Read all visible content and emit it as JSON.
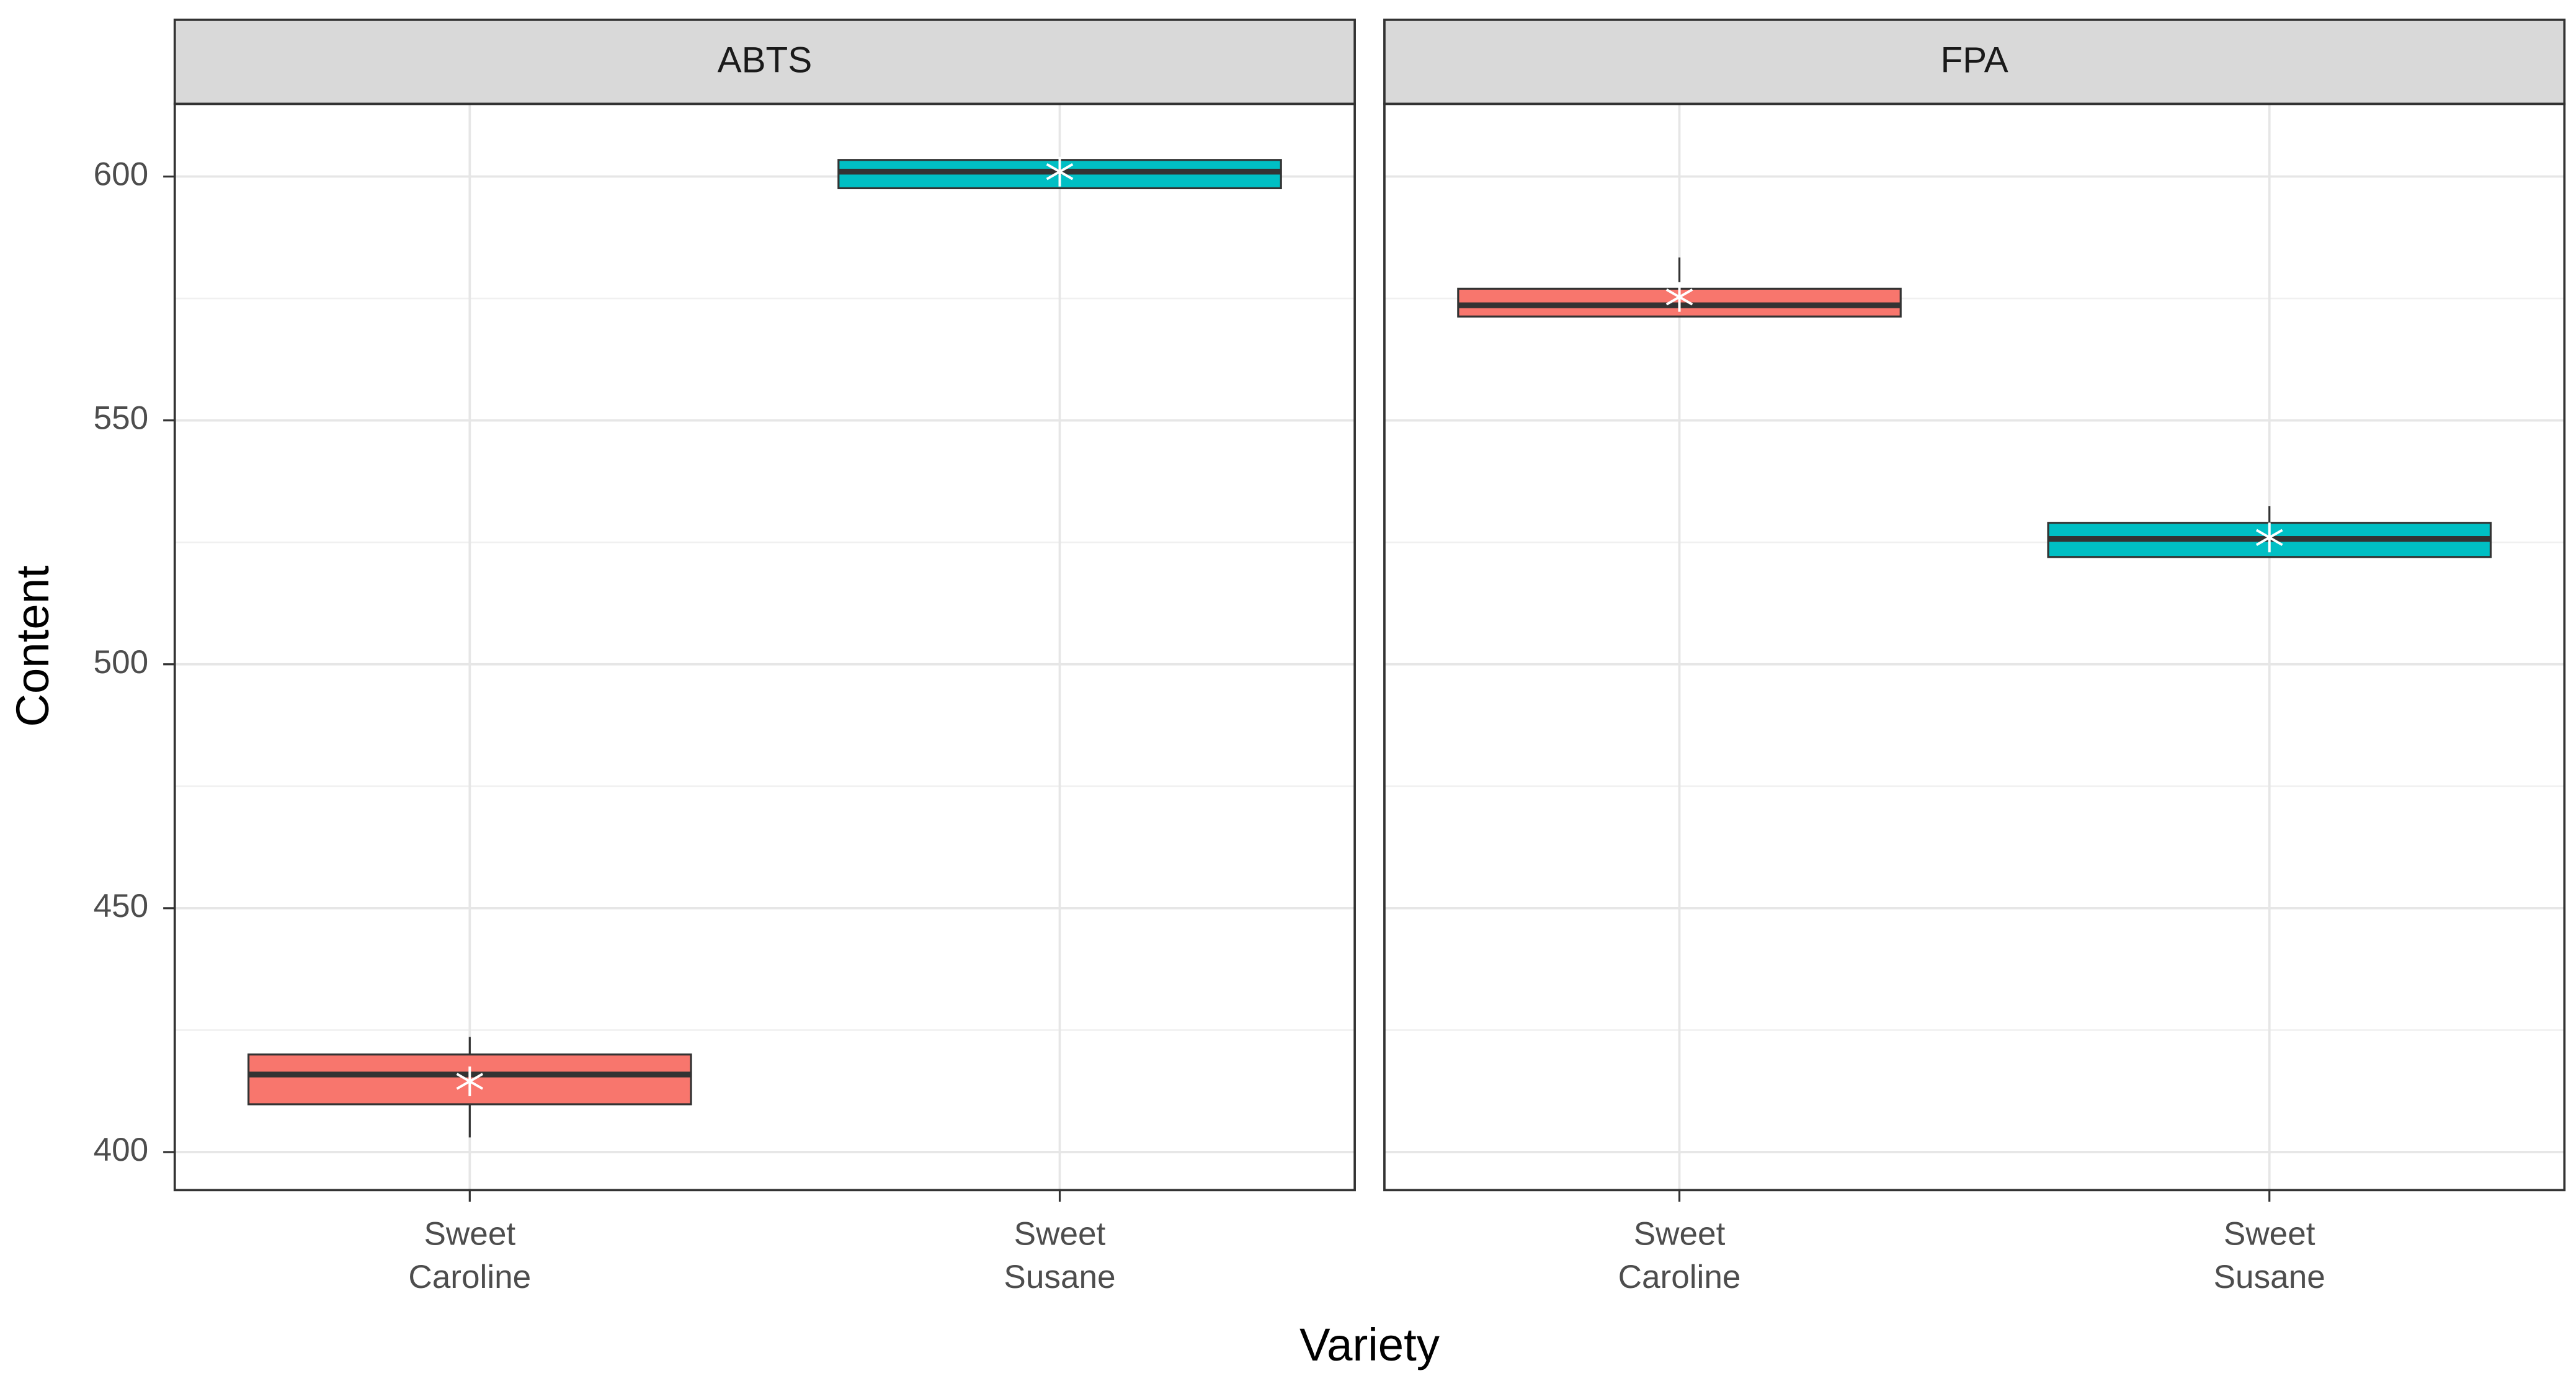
{
  "chart_data": {
    "type": "box",
    "xlabel": "Variety",
    "ylabel": "Content",
    "ylim": [
      392.2,
      614.9
    ],
    "yticks": [
      400,
      450,
      500,
      550,
      600
    ],
    "minor_yticks": [
      425,
      475,
      525,
      575
    ],
    "grid": true,
    "colors": [
      "#f8766d",
      "#00bfc4"
    ],
    "panels": [
      {
        "title": "ABTS",
        "categories": [
          "Sweet\nCaroline",
          "Sweet\nSusane"
        ],
        "whislo": [
          403,
          600
        ],
        "q1": [
          409.8,
          597.6
        ],
        "median": [
          415.9,
          601
        ],
        "q3": [
          420,
          603.4
        ],
        "whishi": [
          423.6,
          603.4
        ],
        "mean": [
          414.5,
          601
        ]
      },
      {
        "title": "FPA",
        "categories": [
          "Sweet\nCaroline",
          "Sweet\nSusane"
        ],
        "whislo": [
          571.3,
          522
        ],
        "q1": [
          571.3,
          522
        ],
        "median": [
          573.6,
          525.7
        ],
        "q3": [
          577,
          529
        ],
        "whishi": [
          583.4,
          532.4
        ],
        "mean": [
          575.3,
          526
        ]
      }
    ]
  }
}
